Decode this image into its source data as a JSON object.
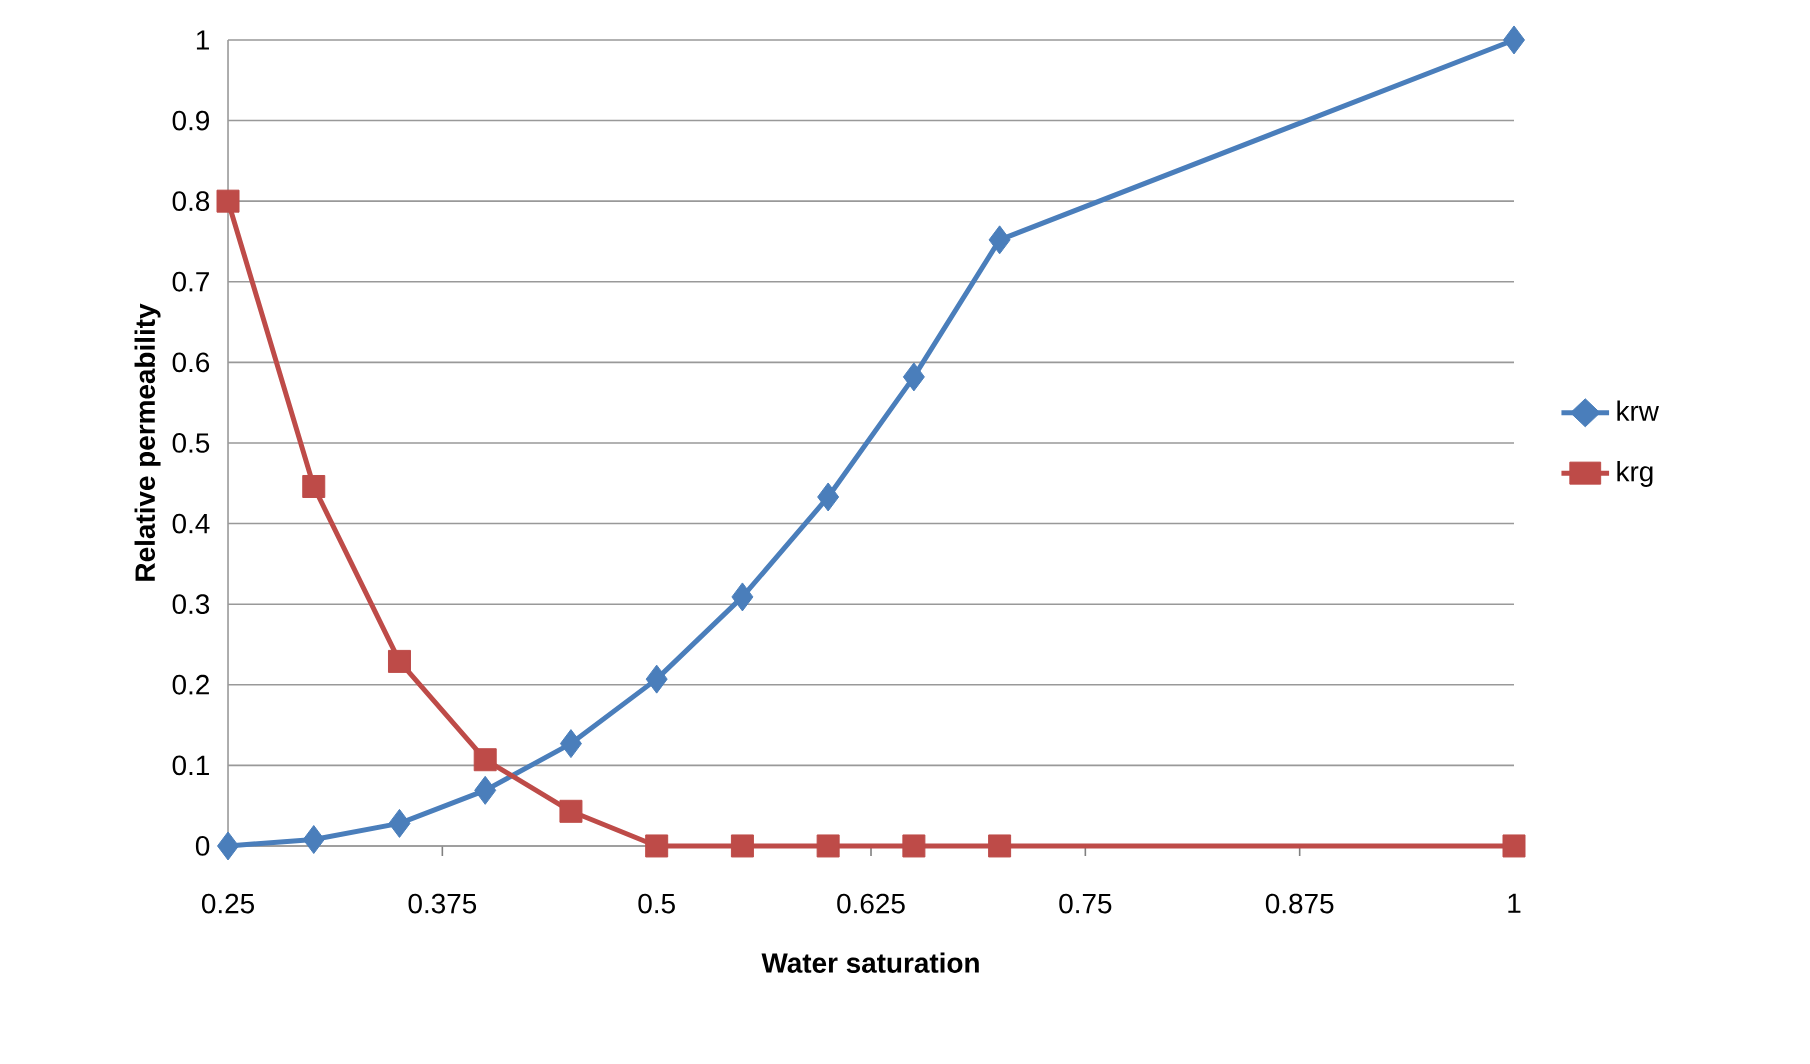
{
  "chart_data": {
    "type": "line",
    "xlabel": "Water saturation",
    "ylabel": "Relative permeability",
    "xlim": [
      0.25,
      1
    ],
    "xticks": [
      0.25,
      0.375,
      0.5,
      0.625,
      0.75,
      0.875,
      1
    ],
    "ylim": [
      0,
      1
    ],
    "yticks": [
      0,
      0.1,
      0.2,
      0.3,
      0.4,
      0.5,
      0.6,
      0.7,
      0.8,
      0.9,
      1
    ],
    "grid": "y",
    "legend": "right",
    "line_style": "solid",
    "series": [
      {
        "name": "krw",
        "color": "#4a7ebb",
        "marker": "diamond",
        "x": [
          0.25,
          0.3,
          0.35,
          0.4,
          0.45,
          0.5,
          0.55,
          0.6,
          0.65,
          0.7,
          1
        ],
        "values": [
          0,
          0.008,
          0.028,
          0.069,
          0.127,
          0.207,
          0.309,
          0.433,
          0.582,
          0.752,
          1
        ]
      },
      {
        "name": "krg",
        "color": "#be4b48",
        "marker": "square",
        "x": [
          0.25,
          0.3,
          0.35,
          0.4,
          0.45,
          0.5,
          0.55,
          0.6,
          0.65,
          0.7,
          1
        ],
        "values": [
          0.8,
          0.446,
          0.229,
          0.107,
          0.043,
          0,
          0,
          0,
          0,
          0,
          0
        ]
      }
    ]
  }
}
